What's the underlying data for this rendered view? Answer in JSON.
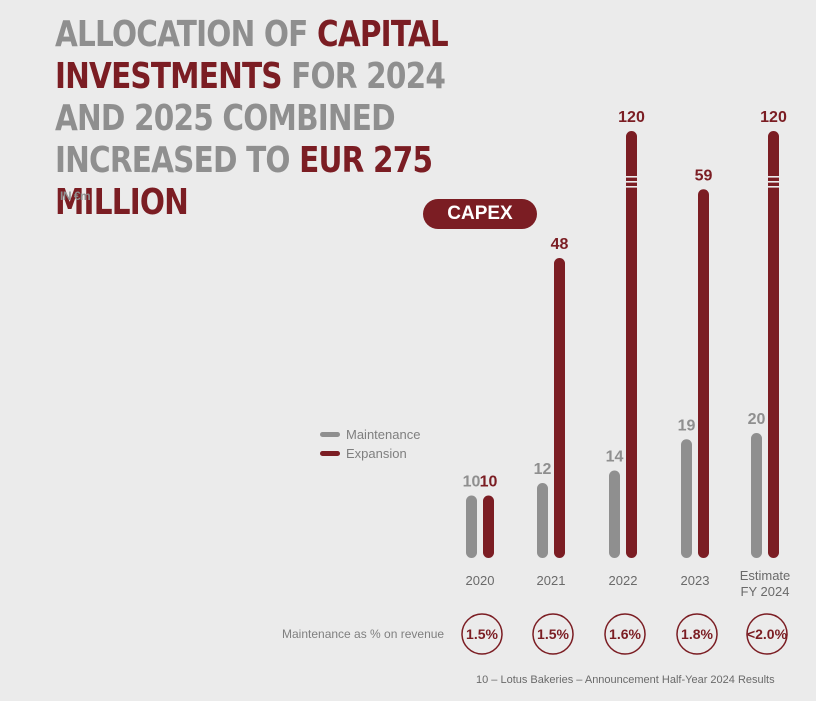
{
  "title": {
    "part1": "ALLOCATION OF ",
    "part2": "CAPITAL INVESTMENTS",
    "part3": " FOR 2024 AND 2025 COMBINED INCREASED TO ",
    "part4": "EUR 275 MILLION"
  },
  "unit_label": "IN €m",
  "capex_label": "CAPEX",
  "legend": [
    {
      "label": "Maintenance",
      "color": "#8f8f8f"
    },
    {
      "label": "Expansion",
      "color": "#7b1d23"
    }
  ],
  "maintenance_row_label": "Maintenance as % on revenue",
  "footer": "10 – Lotus Bakeries – Announcement Half-Year 2024 Results",
  "chart_data": {
    "type": "bar",
    "categories": [
      [
        "2020"
      ],
      [
        "2021"
      ],
      [
        "2022"
      ],
      [
        "2023"
      ],
      [
        "Estimate",
        "FY 2024"
      ]
    ],
    "series": [
      {
        "name": "Maintenance",
        "values": [
          10,
          12,
          14,
          19,
          20
        ],
        "color": "#8f8f8f"
      },
      {
        "name": "Expansion",
        "values": [
          10,
          48,
          120,
          59,
          120
        ],
        "color": "#7b1d23",
        "broken_axis": [
          false,
          false,
          true,
          false,
          true
        ]
      }
    ],
    "maintenance_pct_revenue": [
      "1.5%",
      "1.5%",
      "1.6%",
      "1.8%",
      "<2.0%"
    ]
  }
}
